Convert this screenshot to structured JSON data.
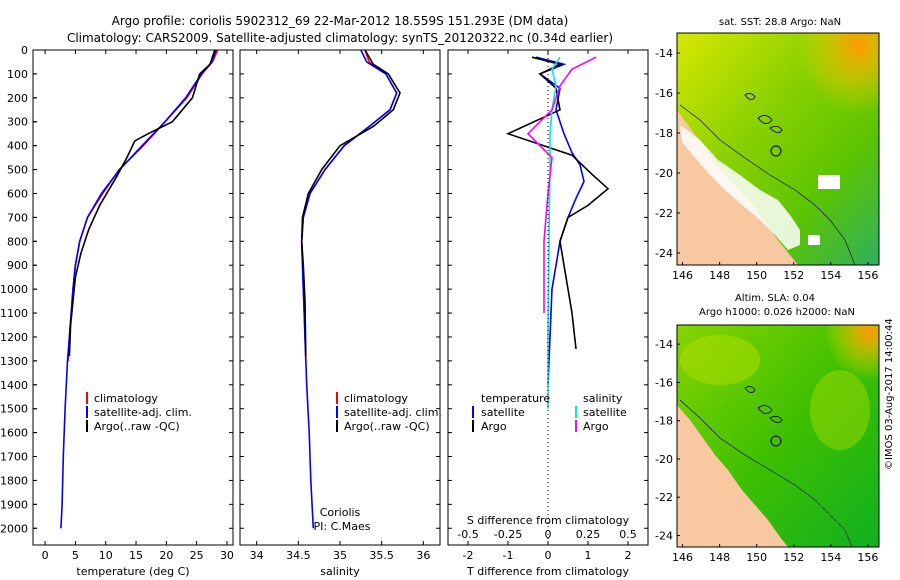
{
  "header": {
    "line1": "Argo profile: coriolis 5902312_69 22-Mar-2012 18.559S 151.293E (DM data)",
    "line2": "Climatology: CARS2009. Satellite-adjusted climatology: synTS_20120322.nc (0.34d earlier)"
  },
  "colors": {
    "climatology": "#ff0000",
    "satellite": "#0000ff",
    "argo": "#000000",
    "salinity_sat": "#00e5e5",
    "salinity_argo": "#ff00ff"
  },
  "chart_data": [
    {
      "type": "line",
      "name": "temperature-profile",
      "xlabel": "temperature (deg C)",
      "ylabel": "",
      "xlim": [
        -2,
        31
      ],
      "ylim": [
        2070,
        0
      ],
      "xticks": [
        0,
        5,
        10,
        15,
        20,
        25,
        30
      ],
      "yticks": [
        0,
        100,
        200,
        300,
        400,
        500,
        600,
        700,
        800,
        900,
        1000,
        1100,
        1200,
        1300,
        1400,
        1500,
        1600,
        1700,
        1800,
        1900,
        2000
      ],
      "legend": [
        "climatology",
        "satellite-adj. clim.",
        "Argo(..raw -QC)"
      ],
      "series": [
        {
          "name": "climatology",
          "color": "#ff0000",
          "points": [
            [
              28.5,
              0
            ],
            [
              27.6,
              50
            ],
            [
              25.9,
              100
            ],
            [
              23.4,
              200
            ],
            [
              19.8,
              300
            ],
            [
              16.2,
              400
            ],
            [
              12.2,
              500
            ],
            [
              9.5,
              600
            ],
            [
              7.0,
              700
            ],
            [
              5.7,
              800
            ],
            [
              5.0,
              900
            ],
            [
              4.6,
              1000
            ],
            [
              4.3,
              1100
            ],
            [
              4.0,
              1200
            ],
            [
              3.8,
              1300
            ]
          ]
        },
        {
          "name": "satellite-adj. clim.",
          "color": "#0000ff",
          "points": [
            [
              28.2,
              0
            ],
            [
              27.5,
              50
            ],
            [
              25.8,
              100
            ],
            [
              23.2,
              200
            ],
            [
              19.8,
              300
            ],
            [
              16.0,
              400
            ],
            [
              12.3,
              500
            ],
            [
              9.3,
              600
            ],
            [
              7.0,
              700
            ],
            [
              5.7,
              800
            ],
            [
              5.0,
              900
            ],
            [
              4.6,
              1000
            ],
            [
              4.3,
              1100
            ],
            [
              4.0,
              1200
            ],
            [
              3.7,
              1300
            ],
            [
              3.3,
              1500
            ],
            [
              3.0,
              1700
            ],
            [
              2.8,
              1900
            ],
            [
              2.6,
              2000
            ]
          ]
        },
        {
          "name": "Argo(..raw -QC)",
          "color": "#000000",
          "points": [
            [
              28.0,
              0
            ],
            [
              27.2,
              60
            ],
            [
              25.5,
              100
            ],
            [
              24.3,
              200
            ],
            [
              21.0,
              300
            ],
            [
              17.0,
              350
            ],
            [
              14.8,
              380
            ],
            [
              13.5,
              450
            ],
            [
              11.8,
              530
            ],
            [
              9.0,
              650
            ],
            [
              7.2,
              750
            ],
            [
              5.9,
              850
            ],
            [
              5.0,
              950
            ],
            [
              4.6,
              1050
            ],
            [
              4.2,
              1150
            ],
            [
              4.0,
              1280
            ]
          ]
        }
      ]
    },
    {
      "type": "line",
      "name": "salinity-profile",
      "xlabel": "salinity",
      "ylabel": "",
      "xlim": [
        33.8,
        36.2
      ],
      "ylim": [
        2070,
        0
      ],
      "xticks": [
        34,
        34.5,
        35,
        35.5,
        36
      ],
      "legend": [
        "climatology",
        "satellite-adj. clim.",
        "Argo(..raw -QC)"
      ],
      "annotation": [
        "Coriolis",
        "PI: C.Maes"
      ],
      "series": [
        {
          "name": "climatology",
          "color": "#ff0000",
          "points": [
            [
              35.3,
              0
            ],
            [
              35.35,
              50
            ],
            [
              35.55,
              100
            ],
            [
              35.68,
              180
            ],
            [
              35.6,
              250
            ],
            [
              35.35,
              320
            ],
            [
              35.05,
              400
            ],
            [
              34.82,
              500
            ],
            [
              34.64,
              600
            ],
            [
              34.56,
              700
            ],
            [
              34.54,
              800
            ],
            [
              34.55,
              900
            ],
            [
              34.56,
              1000
            ],
            [
              34.57,
              1100
            ],
            [
              34.58,
              1200
            ],
            [
              34.59,
              1300
            ]
          ]
        },
        {
          "name": "satellite-adj. clim.",
          "color": "#0000ff",
          "points": [
            [
              35.25,
              0
            ],
            [
              35.32,
              50
            ],
            [
              35.55,
              100
            ],
            [
              35.68,
              180
            ],
            [
              35.6,
              250
            ],
            [
              35.35,
              320
            ],
            [
              35.05,
              400
            ],
            [
              34.82,
              500
            ],
            [
              34.64,
              600
            ],
            [
              34.56,
              700
            ],
            [
              34.54,
              800
            ],
            [
              34.55,
              900
            ],
            [
              34.56,
              1000
            ],
            [
              34.57,
              1100
            ],
            [
              34.58,
              1200
            ],
            [
              34.6,
              1400
            ],
            [
              34.63,
              1600
            ],
            [
              34.65,
              1800
            ],
            [
              34.68,
              2000
            ]
          ]
        },
        {
          "name": "Argo(..raw -QC)",
          "color": "#000000",
          "points": [
            [
              35.3,
              0
            ],
            [
              35.4,
              60
            ],
            [
              35.58,
              100
            ],
            [
              35.72,
              180
            ],
            [
              35.64,
              250
            ],
            [
              35.4,
              320
            ],
            [
              35.0,
              400
            ],
            [
              34.78,
              500
            ],
            [
              34.62,
              600
            ],
            [
              34.55,
              700
            ],
            [
              34.54,
              800
            ],
            [
              34.56,
              900
            ],
            [
              34.58,
              1050
            ],
            [
              34.59,
              1280
            ]
          ]
        }
      ]
    },
    {
      "type": "line",
      "name": "difference-profile",
      "xlabel": "T difference from climatology",
      "xlabel2": "S difference from climatology",
      "xlim": [
        -2.5,
        2.5
      ],
      "ylim": [
        2070,
        0
      ],
      "xticks": [
        -2,
        -1,
        0,
        1,
        2
      ],
      "xticks_top": [
        "-0.5",
        "-0.25",
        "0",
        "0.25",
        "0.5"
      ],
      "legend_temperature_title": "temperature",
      "legend_salinity_title": "salinity",
      "legend_temperature": [
        "satellite",
        "Argo"
      ],
      "legend_salinity": [
        "satellite",
        "Argo"
      ],
      "series": [
        {
          "name": "T satellite",
          "color": "#0000ff",
          "points": [
            [
              -0.3,
              30
            ],
            [
              0.4,
              60
            ],
            [
              -0.2,
              100
            ],
            [
              0.3,
              160
            ],
            [
              0.2,
              250
            ],
            [
              0.4,
              350
            ],
            [
              0.6,
              430
            ],
            [
              0.8,
              480
            ],
            [
              0.9,
              550
            ],
            [
              0.7,
              620
            ],
            [
              0.5,
              700
            ],
            [
              0.3,
              800
            ],
            [
              0.2,
              900
            ],
            [
              0.1,
              1000
            ],
            [
              0.05,
              1200
            ],
            [
              0,
              1400
            ]
          ]
        },
        {
          "name": "T Argo",
          "color": "#000000",
          "points": [
            [
              -0.4,
              30
            ],
            [
              0.3,
              60
            ],
            [
              -0.2,
              100
            ],
            [
              0.2,
              160
            ],
            [
              0.3,
              250
            ],
            [
              -1.0,
              350
            ],
            [
              0.6,
              440
            ],
            [
              1.1,
              520
            ],
            [
              1.5,
              580
            ],
            [
              1.0,
              650
            ],
            [
              0.5,
              700
            ],
            [
              0.3,
              800
            ],
            [
              0.4,
              900
            ],
            [
              0.5,
              1000
            ],
            [
              0.6,
              1100
            ],
            [
              0.7,
              1250
            ]
          ]
        },
        {
          "name": "S satellite",
          "color": "#00e5e5",
          "points": [
            [
              0.3,
              30
            ],
            [
              0.1,
              80
            ],
            [
              0.2,
              150
            ],
            [
              0.1,
              250
            ],
            [
              0.05,
              350
            ],
            [
              0.05,
              500
            ],
            [
              0.03,
              700
            ],
            [
              0.02,
              900
            ],
            [
              0.0,
              1200
            ],
            [
              0.0,
              1500
            ]
          ]
        },
        {
          "name": "S Argo",
          "color": "#ff00ff",
          "points": [
            [
              1.2,
              30
            ],
            [
              0.6,
              80
            ],
            [
              0.3,
              150
            ],
            [
              0.1,
              250
            ],
            [
              -0.5,
              350
            ],
            [
              0.1,
              450
            ],
            [
              0.0,
              600
            ],
            [
              -0.1,
              800
            ],
            [
              -0.1,
              1000
            ],
            [
              -0.1,
              1100
            ]
          ]
        }
      ]
    },
    {
      "type": "heatmap",
      "name": "sst-map",
      "title": "sat. SST: 28.8  Argo: NaN",
      "xticks": [
        146,
        148,
        150,
        152,
        154,
        156
      ],
      "yticks": [
        -14,
        -16,
        -18,
        -20,
        -22,
        -24
      ]
    },
    {
      "type": "heatmap",
      "name": "sla-map",
      "title": "Altim. SLA: 0.04",
      "subtitle": "Argo h1000: 0.026  h2000: NaN",
      "xticks": [
        146,
        148,
        150,
        152,
        154,
        156
      ],
      "yticks": [
        -14,
        -16,
        -18,
        -20,
        -22,
        -24
      ]
    }
  ],
  "watermark": "©IMOS 03-Aug-2017 14:00:44"
}
